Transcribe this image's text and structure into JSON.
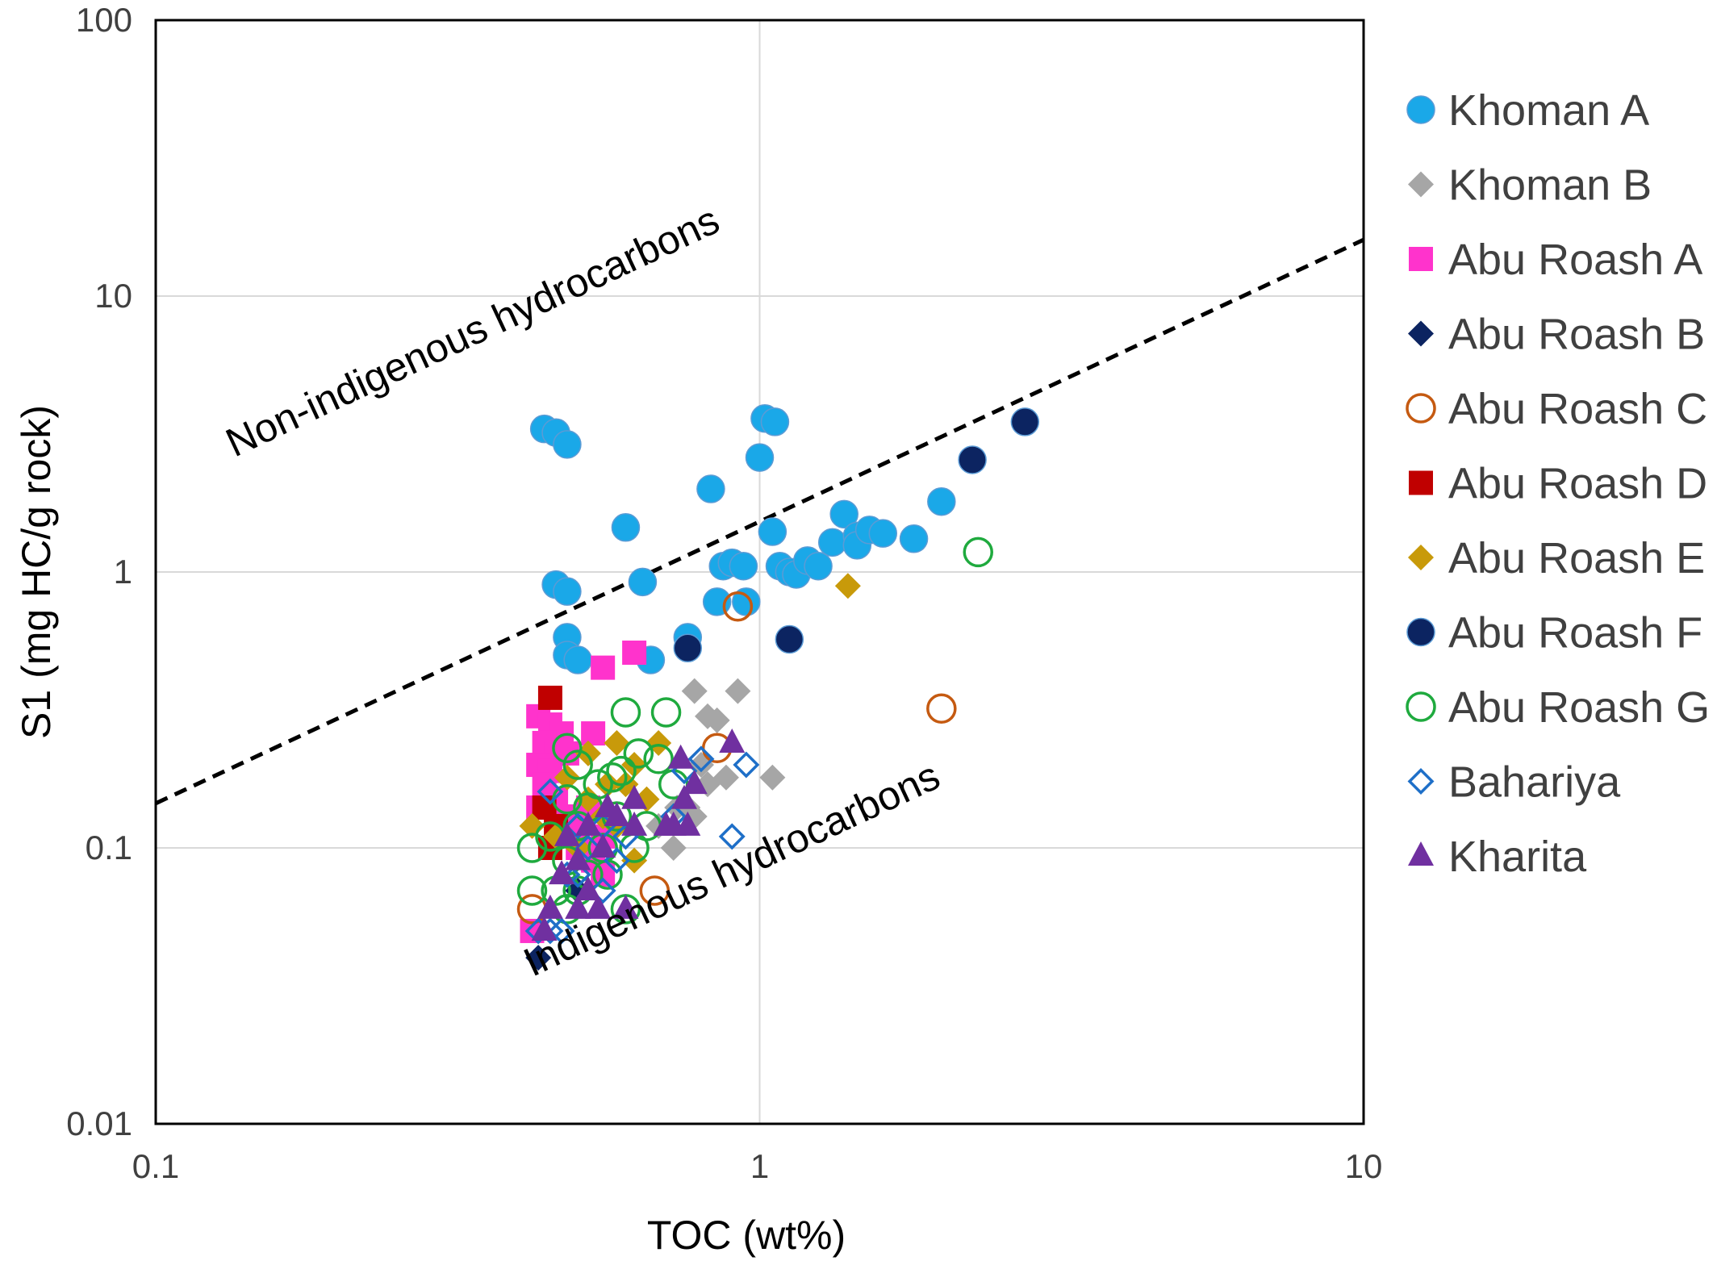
{
  "chart_data": {
    "type": "scatter",
    "xscale": "log",
    "yscale": "log",
    "xlim": [
      0.1,
      10
    ],
    "ylim": [
      0.01,
      100
    ],
    "xlabel": "TOC (wt%)",
    "ylabel": "S1 (mg HC/g rock)",
    "xticks": [
      "0.1",
      "1",
      "10"
    ],
    "yticks": [
      "0.01",
      "0.1",
      "1",
      "10",
      "100"
    ],
    "grid": true,
    "legend_position": "right",
    "annotations": [
      {
        "text": "Non-indigenous hydrocarbons",
        "x": 0.135,
        "y": 2.6
      },
      {
        "text": "Indigenous hydrocarbons",
        "x": 0.42,
        "y": 0.034
      }
    ],
    "threshold_line": {
      "style": "dashed",
      "color": "#000000",
      "points": [
        [
          0.1,
          0.145
        ],
        [
          10,
          16
        ]
      ]
    },
    "series": [
      {
        "name": "Khoman A",
        "marker": "circle-filled",
        "color": "#1AA8E8",
        "points": [
          [
            0.44,
            3.3
          ],
          [
            0.46,
            3.2
          ],
          [
            0.48,
            2.9
          ],
          [
            0.6,
            1.45
          ],
          [
            0.46,
            0.9
          ],
          [
            0.48,
            0.85
          ],
          [
            0.64,
            0.92
          ],
          [
            0.48,
            0.58
          ],
          [
            0.48,
            0.5
          ],
          [
            0.5,
            0.48
          ],
          [
            0.66,
            0.48
          ],
          [
            0.76,
            0.58
          ],
          [
            0.83,
            2.0
          ],
          [
            0.87,
            1.05
          ],
          [
            0.9,
            1.08
          ],
          [
            0.94,
            1.05
          ],
          [
            0.85,
            0.78
          ],
          [
            0.95,
            0.78
          ],
          [
            1.0,
            2.6
          ],
          [
            1.02,
            3.6
          ],
          [
            1.06,
            3.5
          ],
          [
            1.05,
            1.4
          ],
          [
            1.08,
            1.05
          ],
          [
            1.12,
            1.0
          ],
          [
            1.15,
            0.98
          ],
          [
            1.2,
            1.1
          ],
          [
            1.25,
            1.05
          ],
          [
            1.32,
            1.28
          ],
          [
            1.38,
            1.62
          ],
          [
            1.45,
            1.35
          ],
          [
            1.45,
            1.25
          ],
          [
            1.52,
            1.42
          ],
          [
            1.6,
            1.38
          ],
          [
            1.8,
            1.32
          ],
          [
            2.0,
            1.8
          ]
        ]
      },
      {
        "name": "Khoman B",
        "marker": "diamond-filled",
        "color": "#A6A6A6",
        "points": [
          [
            0.78,
            0.37
          ],
          [
            0.82,
            0.3
          ],
          [
            0.85,
            0.29
          ],
          [
            0.92,
            0.37
          ],
          [
            0.88,
            0.18
          ],
          [
            0.8,
            0.2
          ],
          [
            0.82,
            0.17
          ],
          [
            0.76,
            0.14
          ],
          [
            0.73,
            0.14
          ],
          [
            0.72,
            0.1
          ],
          [
            0.78,
            0.13
          ],
          [
            1.05,
            0.18
          ],
          [
            0.68,
            0.12
          ]
        ]
      },
      {
        "name": "Abu Roash A",
        "marker": "square-filled",
        "color": "#FF33CC",
        "points": [
          [
            0.55,
            0.45
          ],
          [
            0.62,
            0.51
          ],
          [
            0.43,
            0.3
          ],
          [
            0.45,
            0.28
          ],
          [
            0.47,
            0.26
          ],
          [
            0.53,
            0.26
          ],
          [
            0.44,
            0.24
          ],
          [
            0.46,
            0.22
          ],
          [
            0.48,
            0.22
          ],
          [
            0.43,
            0.2
          ],
          [
            0.45,
            0.19
          ],
          [
            0.44,
            0.17
          ],
          [
            0.46,
            0.15
          ],
          [
            0.43,
            0.14
          ],
          [
            0.47,
            0.13
          ],
          [
            0.5,
            0.12
          ],
          [
            0.52,
            0.14
          ],
          [
            0.55,
            0.11
          ],
          [
            0.5,
            0.1
          ],
          [
            0.53,
            0.09
          ],
          [
            0.55,
            0.08
          ],
          [
            0.42,
            0.05
          ]
        ]
      },
      {
        "name": "Abu Roash B",
        "marker": "diamond-filled",
        "color": "#0C2461",
        "points": [
          [
            0.43,
            0.04
          ],
          [
            0.5,
            0.07
          ]
        ]
      },
      {
        "name": "Abu Roash C",
        "marker": "circle-open",
        "color": "#C55A11",
        "points": [
          [
            0.92,
            0.75
          ],
          [
            2.0,
            0.32
          ],
          [
            0.85,
            0.23
          ],
          [
            0.67,
            0.07
          ],
          [
            0.42,
            0.06
          ]
        ]
      },
      {
        "name": "Abu Roash D",
        "marker": "square-filled",
        "color": "#C00000",
        "points": [
          [
            0.45,
            0.35
          ],
          [
            0.44,
            0.14
          ],
          [
            0.46,
            0.12
          ],
          [
            0.45,
            0.1
          ]
        ]
      },
      {
        "name": "Abu Roash E",
        "marker": "diamond-filled",
        "color": "#C89A0A",
        "points": [
          [
            1.4,
            0.89
          ],
          [
            0.58,
            0.24
          ],
          [
            0.68,
            0.24
          ],
          [
            0.52,
            0.22
          ],
          [
            0.62,
            0.2
          ],
          [
            0.48,
            0.18
          ],
          [
            0.56,
            0.17
          ],
          [
            0.6,
            0.17
          ],
          [
            0.52,
            0.15
          ],
          [
            0.65,
            0.15
          ],
          [
            0.55,
            0.13
          ],
          [
            0.58,
            0.12
          ],
          [
            0.42,
            0.12
          ],
          [
            0.5,
            0.1
          ],
          [
            0.46,
            0.11
          ],
          [
            0.62,
            0.09
          ]
        ]
      },
      {
        "name": "Abu Roash F",
        "marker": "circle-filled",
        "color": "#0C2461",
        "points": [
          [
            2.75,
            3.5
          ],
          [
            2.25,
            2.55
          ],
          [
            0.76,
            0.53
          ],
          [
            1.12,
            0.57
          ]
        ]
      },
      {
        "name": "Abu Roash G",
        "marker": "circle-open",
        "color": "#1FAA3E",
        "points": [
          [
            2.3,
            1.18
          ],
          [
            0.6,
            0.31
          ],
          [
            0.7,
            0.31
          ],
          [
            0.48,
            0.23
          ],
          [
            0.63,
            0.22
          ],
          [
            0.68,
            0.21
          ],
          [
            0.5,
            0.2
          ],
          [
            0.59,
            0.19
          ],
          [
            0.54,
            0.17
          ],
          [
            0.57,
            0.18
          ],
          [
            0.72,
            0.17
          ],
          [
            0.48,
            0.15
          ],
          [
            0.52,
            0.14
          ],
          [
            0.58,
            0.13
          ],
          [
            0.65,
            0.12
          ],
          [
            0.5,
            0.12
          ],
          [
            0.45,
            0.11
          ],
          [
            0.55,
            0.1
          ],
          [
            0.62,
            0.1
          ],
          [
            0.42,
            0.1
          ],
          [
            0.48,
            0.09
          ],
          [
            0.52,
            0.08
          ],
          [
            0.56,
            0.08
          ],
          [
            0.46,
            0.07
          ],
          [
            0.5,
            0.07
          ],
          [
            0.42,
            0.07
          ],
          [
            0.48,
            0.06
          ],
          [
            0.6,
            0.06
          ]
        ]
      },
      {
        "name": "Bahariya",
        "marker": "diamond-open",
        "color": "#1E6FC8",
        "points": [
          [
            0.95,
            0.2
          ],
          [
            0.8,
            0.21
          ],
          [
            0.75,
            0.19
          ],
          [
            0.72,
            0.13
          ],
          [
            0.9,
            0.11
          ],
          [
            0.45,
            0.16
          ],
          [
            0.5,
            0.12
          ],
          [
            0.55,
            0.12
          ],
          [
            0.52,
            0.1
          ],
          [
            0.6,
            0.11
          ],
          [
            0.58,
            0.09
          ],
          [
            0.48,
            0.08
          ],
          [
            0.55,
            0.07
          ],
          [
            0.45,
            0.05
          ],
          [
            0.43,
            0.05
          ],
          [
            0.47,
            0.05
          ],
          [
            0.5,
            0.08
          ]
        ]
      },
      {
        "name": "Kharita",
        "marker": "triangle-filled",
        "color": "#7030A0",
        "points": [
          [
            0.9,
            0.24
          ],
          [
            0.74,
            0.21
          ],
          [
            0.78,
            0.17
          ],
          [
            0.75,
            0.15
          ],
          [
            0.72,
            0.12
          ],
          [
            0.76,
            0.12
          ],
          [
            0.7,
            0.12
          ],
          [
            0.62,
            0.15
          ],
          [
            0.58,
            0.13
          ],
          [
            0.56,
            0.14
          ],
          [
            0.62,
            0.12
          ],
          [
            0.52,
            0.12
          ],
          [
            0.55,
            0.1
          ],
          [
            0.48,
            0.11
          ],
          [
            0.5,
            0.09
          ],
          [
            0.47,
            0.08
          ],
          [
            0.52,
            0.07
          ],
          [
            0.54,
            0.06
          ],
          [
            0.5,
            0.06
          ],
          [
            0.45,
            0.06
          ],
          [
            0.6,
            0.06
          ],
          [
            0.44,
            0.05
          ]
        ]
      }
    ]
  }
}
